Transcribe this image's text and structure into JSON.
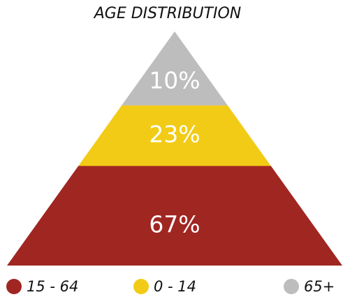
{
  "chart_data": {
    "type": "pyramid",
    "title": "AGE DISTRIBUTION",
    "categories": [
      "65+",
      "0 - 14",
      "15 - 64"
    ],
    "values": [
      10,
      23,
      67
    ],
    "value_labels": [
      "10%",
      "23%",
      "67%"
    ],
    "colors": [
      "#bdbdbd",
      "#f2cb16",
      "#a02622"
    ],
    "legend": "bottom"
  }
}
